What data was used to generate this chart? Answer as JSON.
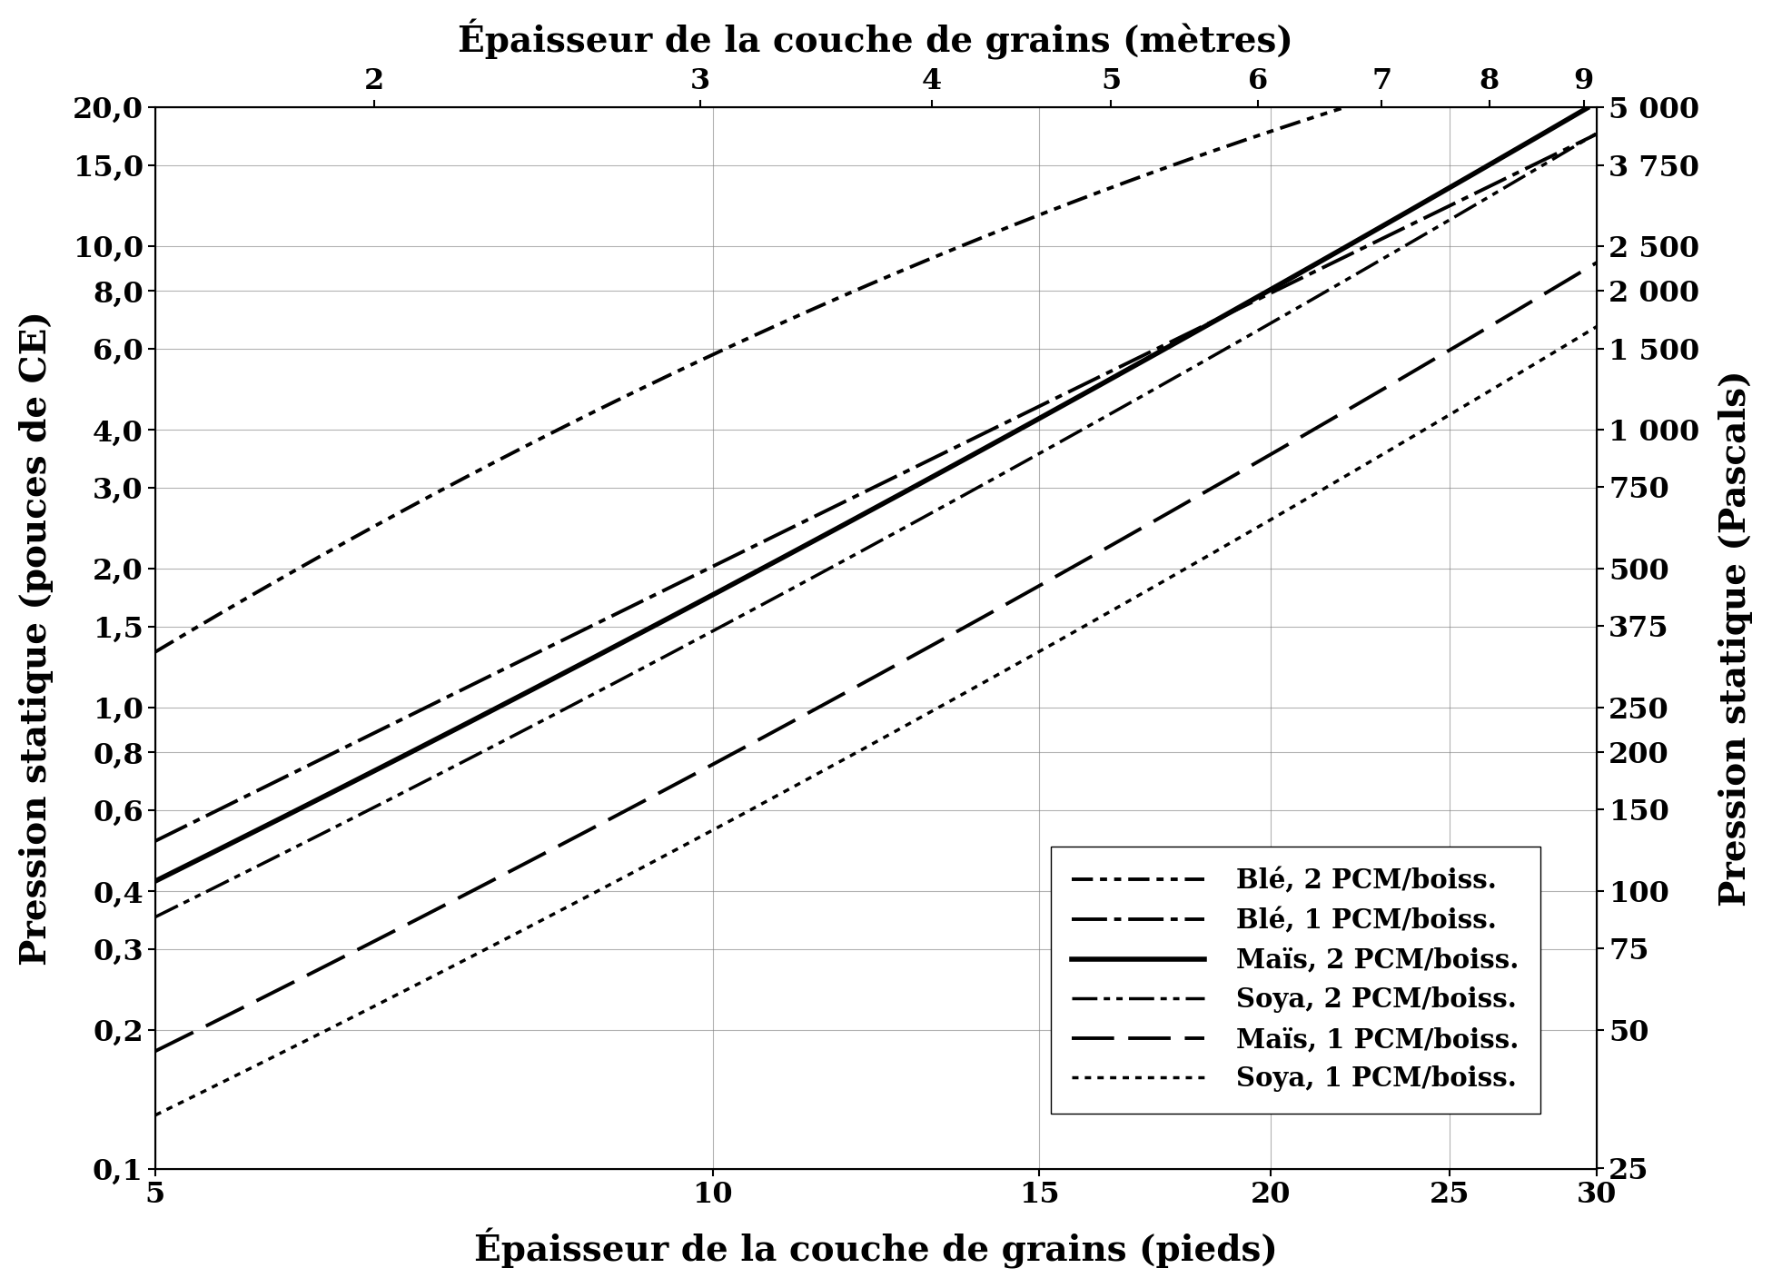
{
  "title_top": "Épaisseur de la couche de grains (mètres)",
  "xlabel_bottom": "Épaisseur de la couche de grains (pieds)",
  "ylabel_left": "Pression statique (pouces de CE)",
  "ylabel_right": "Pression statique (Pascals)",
  "x_feet_min": 5,
  "x_feet_max": 30,
  "x_meters_ticks": [
    2,
    3,
    4,
    5,
    6,
    7,
    8,
    9
  ],
  "y_left_ticks": [
    0.1,
    0.2,
    0.3,
    0.4,
    0.6,
    0.8,
    1.0,
    1.5,
    2.0,
    3.0,
    4.0,
    6.0,
    8.0,
    10.0,
    15.0,
    20.0
  ],
  "y_right_ticks": [
    25,
    50,
    75,
    100,
    150,
    200,
    250,
    375,
    500,
    750,
    1000,
    1500,
    2000,
    2500,
    3750,
    5000
  ],
  "y_min": 0.1,
  "y_max": 20.0,
  "curves": {
    "ble_2pcm": {
      "label": "Blé, 2 PCM/boiss.",
      "x_feet": [
        5,
        6,
        7,
        8,
        9,
        10,
        11,
        12,
        13,
        14,
        15,
        16,
        17,
        18,
        19,
        20,
        22,
        24,
        25
      ],
      "y_inches": [
        1.45,
        2.05,
        2.75,
        3.55,
        4.45,
        5.45,
        6.55,
        7.75,
        9.1,
        10.5,
        12.0,
        13.6,
        15.3,
        17.0,
        18.8,
        20.0,
        20.0,
        20.0,
        20.0
      ]
    },
    "ble_1pcm": {
      "label": "Blé, 1 PCM/boiss.",
      "x_feet": [
        5,
        6,
        7,
        8,
        9,
        10,
        11,
        12,
        13,
        14,
        15,
        16,
        17,
        18,
        19,
        20,
        22,
        24,
        25,
        27,
        30
      ],
      "y_inches": [
        0.52,
        0.74,
        1.0,
        1.3,
        1.63,
        2.0,
        2.42,
        2.88,
        3.38,
        3.92,
        4.5,
        5.12,
        5.78,
        6.5,
        7.25,
        8.0,
        9.65,
        11.4,
        12.3,
        14.2,
        17.0
      ]
    },
    "mais_2pcm": {
      "label": "Maïs, 2 PCM/boiss.",
      "x_feet": [
        5,
        6,
        7,
        8,
        9,
        10,
        11,
        12,
        13,
        14,
        15,
        16,
        17,
        18,
        19,
        20,
        22,
        24,
        25,
        27,
        30
      ],
      "y_inches": [
        0.42,
        0.61,
        0.84,
        1.1,
        1.4,
        1.75,
        2.14,
        2.58,
        3.07,
        3.62,
        4.22,
        4.88,
        5.6,
        6.38,
        7.22,
        8.1,
        10.1,
        12.3,
        13.5,
        16.1,
        20.0
      ]
    },
    "soya_2pcm": {
      "label": "Soya, 2 PCM/boiss.",
      "x_feet": [
        5,
        6,
        7,
        8,
        9,
        10,
        11,
        12,
        13,
        14,
        15,
        16,
        17,
        18,
        19,
        20,
        22,
        24,
        25,
        27,
        30
      ],
      "y_inches": [
        0.35,
        0.51,
        0.7,
        0.92,
        1.17,
        1.46,
        1.79,
        2.16,
        2.57,
        3.03,
        3.54,
        4.1,
        4.71,
        5.37,
        6.08,
        6.85,
        8.55,
        10.45,
        11.5,
        13.75,
        17.2
      ]
    },
    "mais_1pcm": {
      "label": "Maïs, 1 PCM/boiss.",
      "x_feet": [
        5,
        6,
        7,
        8,
        9,
        10,
        11,
        12,
        13,
        14,
        15,
        16,
        17,
        18,
        19,
        20,
        22,
        24,
        25,
        27,
        30
      ],
      "y_inches": [
        0.18,
        0.26,
        0.36,
        0.47,
        0.6,
        0.75,
        0.92,
        1.11,
        1.33,
        1.57,
        1.83,
        2.12,
        2.44,
        2.79,
        3.16,
        3.56,
        4.45,
        5.45,
        6.0,
        7.2,
        9.0
      ]
    },
    "soya_1pcm": {
      "label": "Soya, 1 PCM/boiss.",
      "x_feet": [
        5,
        6,
        7,
        8,
        9,
        10,
        11,
        12,
        13,
        14,
        15,
        16,
        17,
        18,
        19,
        20,
        22,
        24,
        25,
        27,
        30
      ],
      "y_inches": [
        0.13,
        0.19,
        0.26,
        0.34,
        0.43,
        0.54,
        0.66,
        0.8,
        0.96,
        1.13,
        1.32,
        1.53,
        1.76,
        2.01,
        2.28,
        2.57,
        3.22,
        3.94,
        4.34,
        5.22,
        6.55
      ]
    }
  },
  "legend_order": [
    "ble_2pcm",
    "ble_1pcm",
    "mais_2pcm",
    "soya_2pcm",
    "mais_1pcm",
    "soya_1pcm"
  ],
  "feet_to_meters": 0.3048,
  "inches_to_pascals": 249.089
}
